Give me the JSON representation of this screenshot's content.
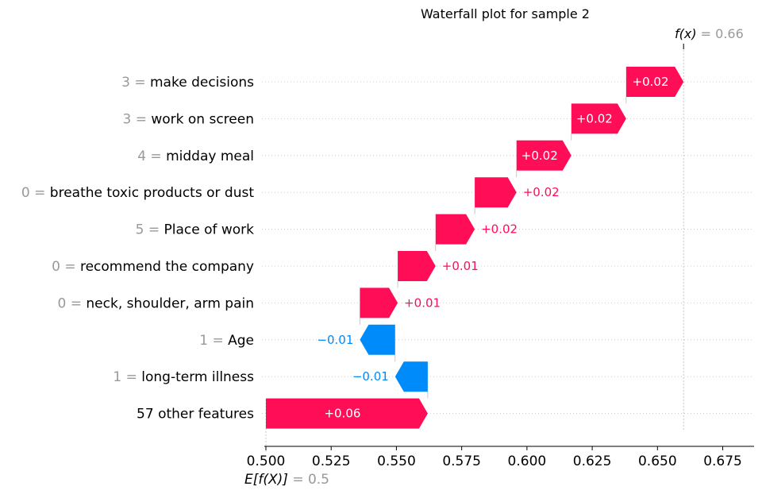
{
  "chart_data": {
    "type": "waterfall",
    "title": "Waterfall plot for sample 2",
    "base_value": 0.5,
    "base_value_label": "= 0.5",
    "base_value_name": "E[f(X)]",
    "output_value": 0.66,
    "output_value_label": "= 0.66",
    "output_value_name": "f(x)",
    "xlim": [
      0.5,
      0.687
    ],
    "xticks": [
      "0.500",
      "0.525",
      "0.550",
      "0.575",
      "0.600",
      "0.625",
      "0.650",
      "0.675"
    ],
    "xtick_values": [
      0.5,
      0.525,
      0.55,
      0.575,
      0.6,
      0.625,
      0.65,
      0.675
    ],
    "colors": {
      "positive": "#ff0d57",
      "negative": "#008bfb",
      "gray": "#999999"
    },
    "features": [
      {
        "value": "3",
        "name": "make decisions",
        "start": 0.638,
        "end": 0.66,
        "label": "+0.02",
        "sign": "pos"
      },
      {
        "value": "3",
        "name": "work on screen",
        "start": 0.617,
        "end": 0.638,
        "label": "+0.02",
        "sign": "pos"
      },
      {
        "value": "4",
        "name": "midday meal",
        "start": 0.596,
        "end": 0.617,
        "label": "+0.02",
        "sign": "pos"
      },
      {
        "value": "0",
        "name": "breathe toxic products or dust",
        "start": 0.58,
        "end": 0.596,
        "label": "+0.02",
        "sign": "pos"
      },
      {
        "value": "5",
        "name": "Place of work",
        "start": 0.565,
        "end": 0.58,
        "label": "+0.02",
        "sign": "pos"
      },
      {
        "value": "0",
        "name": "recommend the company",
        "start": 0.5505,
        "end": 0.565,
        "label": "+0.01",
        "sign": "pos"
      },
      {
        "value": "0",
        "name": "neck, shoulder, arm pain",
        "start": 0.536,
        "end": 0.5505,
        "label": "+0.01",
        "sign": "pos"
      },
      {
        "value": "1",
        "name": "Age",
        "start": 0.5495,
        "end": 0.536,
        "label": "−0.01",
        "sign": "neg"
      },
      {
        "value": "1",
        "name": "long-term illness",
        "start": 0.562,
        "end": 0.5495,
        "label": "−0.01",
        "sign": "neg"
      },
      {
        "value": "",
        "name": "57 other features",
        "start": 0.5,
        "end": 0.562,
        "label": "+0.06",
        "sign": "pos"
      }
    ]
  }
}
